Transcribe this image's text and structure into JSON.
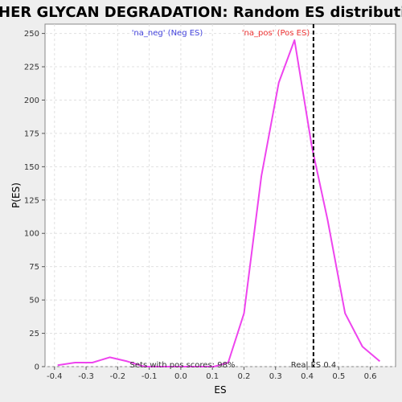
{
  "chart_data": {
    "type": "line",
    "title": "OTHER GLYCAN DEGRADATION: Random ES distribution",
    "xlabel": "ES",
    "ylabel": "P(ES)",
    "xlim": [
      -0.43,
      0.68
    ],
    "ylim": [
      0,
      257
    ],
    "x_ticks": [
      "-0.4",
      "-0.3",
      "-0.2",
      "-0.1",
      "0.0",
      "0.1",
      "0.2",
      "0.3",
      "0.4",
      "0.5",
      "0.6"
    ],
    "x_tick_values": [
      -0.4,
      -0.3,
      -0.2,
      -0.1,
      0.0,
      0.1,
      0.2,
      0.3,
      0.4,
      0.5,
      0.6
    ],
    "y_ticks": [
      "0",
      "25",
      "50",
      "75",
      "100",
      "125",
      "150",
      "175",
      "200",
      "225",
      "250"
    ],
    "y_tick_values": [
      0,
      25,
      50,
      75,
      100,
      125,
      150,
      175,
      200,
      225,
      250
    ],
    "grid": true,
    "series": [
      {
        "color": "#ee44ee",
        "x": [
          -0.39,
          -0.335,
          -0.28,
          -0.225,
          -0.17,
          -0.115,
          -0.06,
          -0.005,
          0.05,
          0.105,
          0.15,
          0.2,
          0.255,
          0.31,
          0.36,
          0.415,
          0.465,
          0.52,
          0.575,
          0.63
        ],
        "y": [
          1,
          3,
          3,
          7,
          4,
          0,
          0,
          0,
          0,
          0,
          3,
          40,
          143,
          213,
          245,
          165,
          110,
          40,
          15,
          4
        ]
      }
    ],
    "real_es": 0.42,
    "annotations": {
      "neg": "'na_neg' (Neg ES)",
      "pos": "'na_pos' (Pos ES)",
      "pos_scores": "Sets with pos scores: 98%",
      "real_es": "Real ES 0.4"
    },
    "colors": {
      "neg": "#4444dd",
      "pos": "#ee3333",
      "vline": "#000000",
      "plot_bg": "#ffffff",
      "page_bg": "#eeeeee"
    }
  }
}
